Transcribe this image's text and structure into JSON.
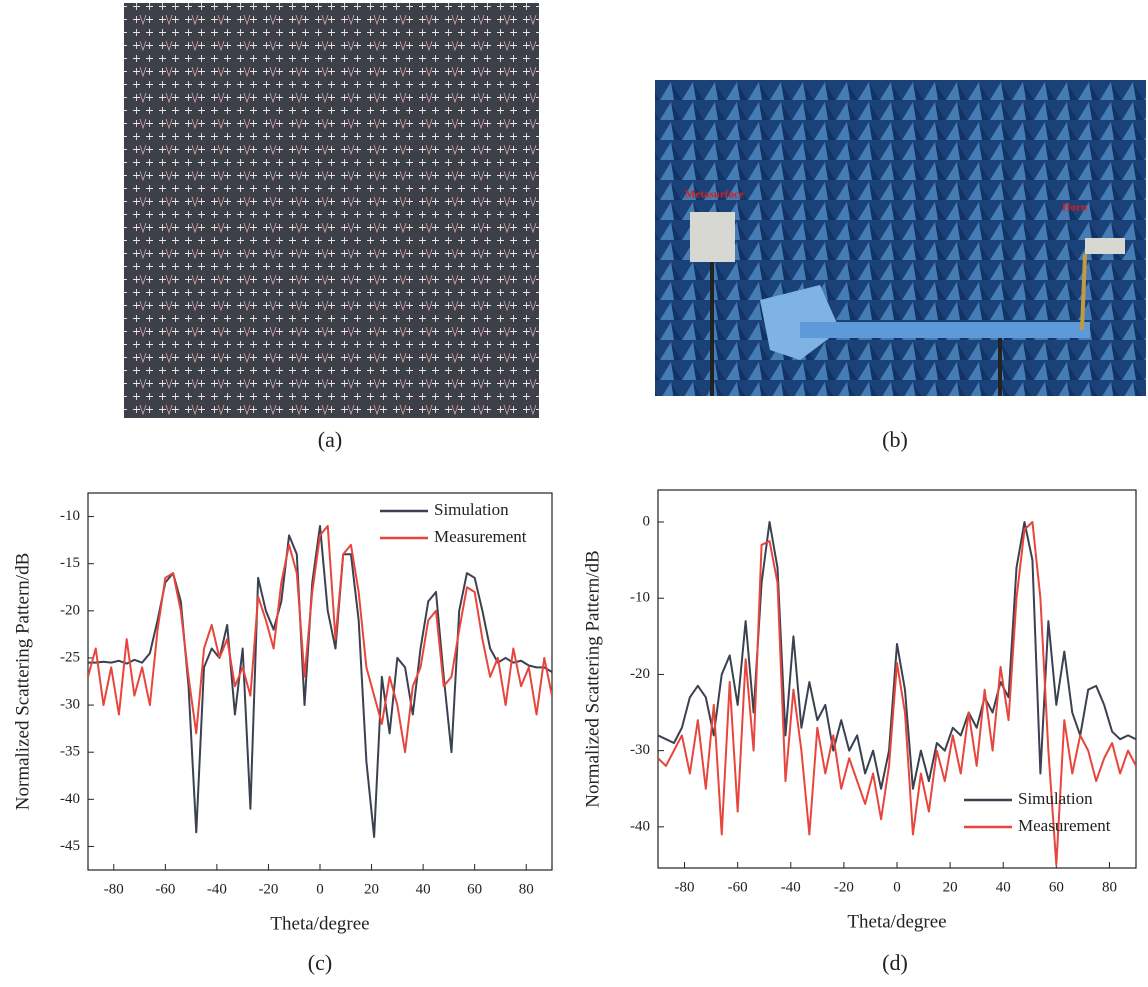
{
  "captions": [
    "(a)",
    "(b)",
    "(c)",
    "(d)"
  ],
  "photo_labels": [
    "Metasurface",
    "Horn"
  ],
  "chart_data": [
    {
      "type": "line",
      "legend": "upper right",
      "x_label": "Theta/degree",
      "y_label": "Normalized Scattering Pattern/dB",
      "xlim": [
        -90,
        90
      ],
      "ylim": [
        -47.5,
        -7.5
      ],
      "xticks": [
        -80,
        -60,
        -40,
        -20,
        0,
        20,
        40,
        60,
        80
      ],
      "yticks": [
        -45,
        -40,
        -35,
        -30,
        -25,
        -20,
        -15,
        -10
      ],
      "x": [
        -90,
        -87,
        -84,
        -81,
        -78,
        -75,
        -72,
        -69,
        -66,
        -63,
        -60,
        -57,
        -54,
        -51,
        -48,
        -45,
        -42,
        -39,
        -36,
        -33,
        -30,
        -27,
        -24,
        -21,
        -18,
        -15,
        -12,
        -9,
        -6,
        -3,
        0,
        3,
        6,
        9,
        12,
        15,
        18,
        21,
        24,
        27,
        30,
        33,
        36,
        39,
        42,
        45,
        48,
        51,
        54,
        57,
        60,
        63,
        66,
        69,
        72,
        75,
        78,
        81,
        84,
        87,
        90
      ],
      "series": [
        {
          "name": "Simulation",
          "color": "#3b4150",
          "values": [
            -25.5,
            -25.5,
            -25.4,
            -25.5,
            -25.3,
            -25.6,
            -25.2,
            -25.5,
            -24.5,
            -21,
            -17,
            -16,
            -19,
            -28,
            -43.5,
            -26,
            -24,
            -25,
            -21.5,
            -31,
            -24,
            -41,
            -16.5,
            -20,
            -22,
            -19,
            -12,
            -14,
            -30,
            -17,
            -11,
            -20,
            -24,
            -14,
            -14,
            -21,
            -36,
            -44,
            -27,
            -33,
            -25,
            -26,
            -31,
            -24,
            -19,
            -18,
            -27,
            -35,
            -20,
            -16,
            -16.5,
            -20,
            -24,
            -25.5,
            -25,
            -25.5,
            -25.3,
            -25.8,
            -26,
            -26,
            -26.5
          ]
        },
        {
          "name": "Measurement",
          "color": "#e8463c",
          "values": [
            -27,
            -24,
            -30,
            -26,
            -31,
            -23,
            -29,
            -26,
            -30,
            -22,
            -16.5,
            -16,
            -20,
            -27,
            -33,
            -24,
            -21.5,
            -25,
            -23,
            -28,
            -26,
            -29,
            -18.5,
            -21,
            -24,
            -17,
            -13,
            -16,
            -27,
            -18,
            -12,
            -11,
            -23,
            -14,
            -13,
            -18,
            -26,
            -29,
            -32,
            -27,
            -30,
            -35,
            -28,
            -26,
            -21,
            -20,
            -28,
            -27,
            -22,
            -17.5,
            -18,
            -23,
            -27,
            -25,
            -30,
            -24,
            -28,
            -26,
            -31,
            -25,
            -29
          ]
        }
      ]
    },
    {
      "type": "line",
      "legend": "lower right",
      "x_label": "Theta/degree",
      "y_label": "Normalized Scattering Pattern/dB",
      "xlim": [
        -90,
        90
      ],
      "ylim": [
        -45.4,
        4.2
      ],
      "xticks": [
        -80,
        -60,
        -40,
        -20,
        0,
        20,
        40,
        60,
        80
      ],
      "yticks": [
        -40,
        -30,
        -20,
        -10,
        0
      ],
      "x": [
        -90,
        -87,
        -84,
        -81,
        -78,
        -75,
        -72,
        -69,
        -66,
        -63,
        -60,
        -57,
        -54,
        -51,
        -48,
        -45,
        -42,
        -39,
        -36,
        -33,
        -30,
        -27,
        -24,
        -21,
        -18,
        -15,
        -12,
        -9,
        -6,
        -3,
        0,
        3,
        6,
        9,
        12,
        15,
        18,
        21,
        24,
        27,
        30,
        33,
        36,
        39,
        42,
        45,
        48,
        51,
        54,
        57,
        60,
        63,
        66,
        69,
        72,
        75,
        78,
        81,
        84,
        87,
        90
      ],
      "series": [
        {
          "name": "Simulation",
          "color": "#3b4150",
          "values": [
            -28,
            -28.5,
            -29,
            -27,
            -23,
            -21.5,
            -23,
            -28,
            -20,
            -17.5,
            -24,
            -13,
            -25,
            -8,
            0,
            -6,
            -28,
            -15,
            -27,
            -21,
            -26,
            -24,
            -30,
            -26,
            -30,
            -28,
            -33,
            -30,
            -35,
            -30,
            -16,
            -22,
            -35,
            -30,
            -34,
            -29,
            -30,
            -27,
            -28,
            -25,
            -27,
            -23,
            -25,
            -21,
            -23,
            -6,
            0,
            -5,
            -33,
            -13,
            -24,
            -17,
            -25,
            -28,
            -22,
            -21.5,
            -24,
            -27.5,
            -28.5,
            -28,
            -28.5
          ]
        },
        {
          "name": "Measurement",
          "color": "#e8463c",
          "values": [
            -31,
            -32,
            -30,
            -28,
            -33,
            -26,
            -35,
            -24,
            -41,
            -21,
            -38,
            -18,
            -30,
            -3,
            -2.5,
            -8,
            -34,
            -22,
            -30,
            -41,
            -27,
            -33,
            -28,
            -35,
            -31,
            -34,
            -37,
            -33,
            -39,
            -32,
            -18.5,
            -25,
            -41,
            -33,
            -38,
            -30,
            -34,
            -28,
            -33,
            -25,
            -32,
            -22,
            -30,
            -19,
            -26,
            -10,
            -1,
            0,
            -10,
            -30,
            -45,
            -26,
            -33,
            -28,
            -30,
            -34,
            -31,
            -29,
            -33,
            -30,
            -32
          ]
        }
      ]
    }
  ]
}
